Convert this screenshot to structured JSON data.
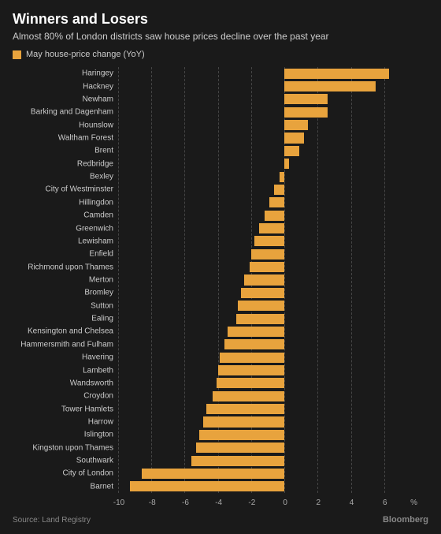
{
  "chart": {
    "type": "bar",
    "title": "Winners and Losers",
    "subtitle": "Almost 80% of London districts saw house prices decline over the past year",
    "legend_label": "May house-price change (YoY)",
    "source": "Source: Land Registry",
    "attribution": "Bloomberg",
    "background_color": "#1a1a1a",
    "bar_color": "#e8a33d",
    "grid_color": "#444444",
    "title_color": "#ffffff",
    "subtitle_color": "#cccccc",
    "label_color": "#cccccc",
    "axis_label_color": "#aaaaaa",
    "source_color": "#888888",
    "title_fontsize": 18,
    "subtitle_fontsize": 12,
    "label_fontsize": 10,
    "xmin": -10,
    "xmax": 8,
    "xticks": [
      -10,
      -8,
      -6,
      -4,
      -2,
      0,
      2,
      4,
      6
    ],
    "unit": "%",
    "categories": [
      "Haringey",
      "Hackney",
      "Newham",
      "Barking and Dagenham",
      "Hounslow",
      "Waltham Forest",
      "Brent",
      "Redbridge",
      "Bexley",
      "City of Westminster",
      "Hillingdon",
      "Camden",
      "Greenwich",
      "Lewisham",
      "Enfield",
      "Richmond upon Thames",
      "Merton",
      "Bromley",
      "Sutton",
      "Ealing",
      "Kensington and Chelsea",
      "Hammersmith and Fulham",
      "Havering",
      "Lambeth",
      "Wandsworth",
      "Croydon",
      "Tower Hamlets",
      "Harrow",
      "Islington",
      "Kingston upon Thames",
      "Southwark",
      "City of London",
      "Barnet"
    ],
    "values": [
      6.3,
      5.5,
      2.6,
      2.6,
      1.4,
      1.2,
      0.9,
      0.3,
      -0.3,
      -0.6,
      -0.9,
      -1.2,
      -1.5,
      -1.8,
      -2.0,
      -2.1,
      -2.4,
      -2.6,
      -2.8,
      -2.9,
      -3.4,
      -3.6,
      -3.9,
      -4.0,
      -4.1,
      -4.3,
      -4.7,
      -4.9,
      -5.1,
      -5.3,
      -5.6,
      -8.6,
      -9.3
    ]
  }
}
